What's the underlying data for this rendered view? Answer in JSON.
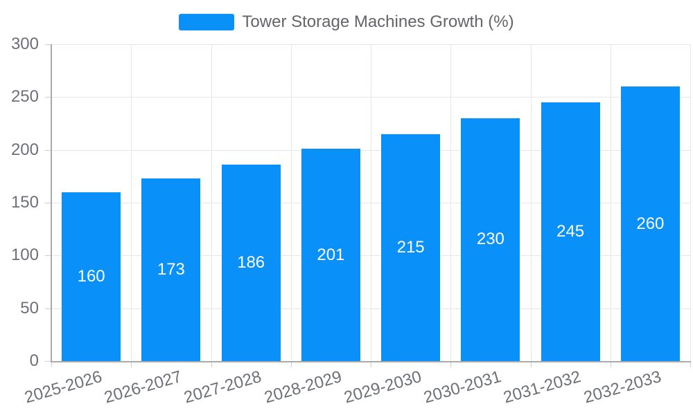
{
  "chart_data": {
    "type": "bar",
    "categories": [
      "2025-2026",
      "2026-2027",
      "2027-2028",
      "2028-2029",
      "2029-2030",
      "2030-2031",
      "2031-2032",
      "2032-2033"
    ],
    "series": [
      {
        "name": "Tower Storage Machines Growth (%)",
        "values": [
          160,
          173,
          186,
          201,
          215,
          230,
          245,
          260
        ]
      }
    ],
    "yticks": [
      0,
      50,
      100,
      150,
      200,
      250,
      300
    ],
    "ylim": [
      0,
      300
    ],
    "grid": true,
    "legend_position": "top-center",
    "bar_label_position": "inside-center",
    "x_label_rotation_deg": -16,
    "colors": {
      "bar": "#0a90f9",
      "bar_label": "#ffffff",
      "axis_line": "#aaaaaa",
      "gridline": "#e6e6e6",
      "tick": "#cccccc",
      "axis_label": "#6e7079",
      "legend_text": "#626569",
      "background": "#ffffff"
    }
  }
}
